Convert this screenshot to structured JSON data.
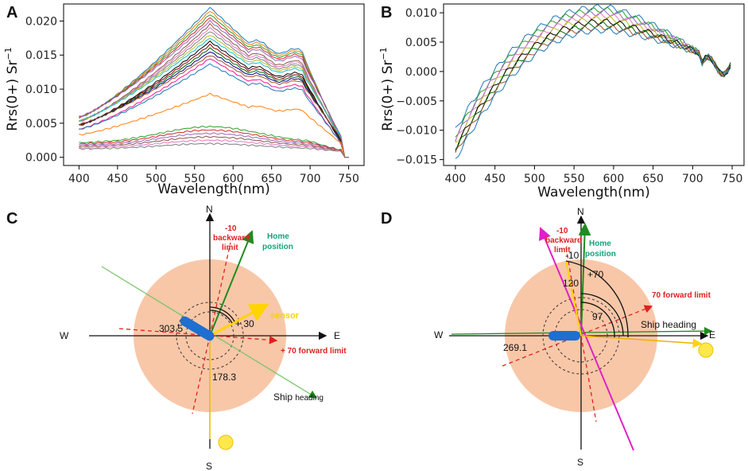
{
  "panels": [
    "A",
    "B",
    "C",
    "D"
  ],
  "colors": {
    "spectra": [
      "#1f77b4",
      "#ff7f0e",
      "#2ca02c",
      "#d62728",
      "#9467bd",
      "#8c564b",
      "#e377c2",
      "#7f7f7f",
      "#bcbd22",
      "#17becf",
      "#000000",
      "#8b0000",
      "#006400",
      "#00008b",
      "#a0522d",
      "#ff1493"
    ],
    "disk": "#f8c7a8",
    "green_line": "#1f8b1f",
    "red": "#e02020",
    "yellow": "#ffd400",
    "magenta": "#e020c8",
    "ship": "#1e6fd0"
  },
  "chart_data": [
    {
      "panel": "A",
      "type": "line",
      "xlabel": "Wavelength(nm)",
      "ylabel": "Rrs(0+) Sr",
      "ylabel_sup": "−1",
      "xlim": [
        380,
        770
      ],
      "ylim": [
        -0.0012,
        0.0225
      ],
      "xticks": [
        400,
        450,
        500,
        550,
        600,
        650,
        700,
        750
      ],
      "xtick_labels": [
        "400",
        "450",
        "500",
        "550",
        "600",
        "650",
        "700",
        "750"
      ],
      "yticks": [
        0.0,
        0.005,
        0.01,
        0.015,
        0.02
      ],
      "ytick_labels": [
        "0.000",
        "0.005",
        "0.010",
        "0.015",
        "0.020"
      ],
      "series_notes": "many in-situ spectra; high group peaks 0.013–0.022 near 570 nm, low group peaks about 0.002–0.0045",
      "series_peaks": [
        0.022,
        0.0215,
        0.021,
        0.0205,
        0.02,
        0.0195,
        0.019,
        0.0185,
        0.018,
        0.0175,
        0.017,
        0.0165,
        0.016,
        0.0155,
        0.015,
        0.0145,
        0.0137,
        0.0093,
        0.0045,
        0.004,
        0.0035,
        0.003,
        0.0025,
        0.002
      ]
    },
    {
      "panel": "B",
      "type": "line",
      "xlabel": "Wavelength(nm)",
      "ylabel": "Rrs(0+) Sr",
      "ylabel_sup": "−1",
      "xlim": [
        385,
        765
      ],
      "ylim": [
        -0.016,
        0.0115
      ],
      "xticks": [
        400,
        450,
        500,
        550,
        600,
        650,
        700,
        750
      ],
      "xtick_labels": [
        "400",
        "450",
        "500",
        "550",
        "600",
        "650",
        "700",
        "750"
      ],
      "yticks": [
        -0.015,
        -0.01,
        -0.005,
        0.0,
        0.005,
        0.01
      ],
      "ytick_labels": [
        "−0.015",
        "−0.010",
        "−0.005",
        "0.000",
        "0.005",
        "0.010"
      ],
      "series_start": [
        -0.01,
        -0.011,
        -0.0115,
        -0.012,
        -0.0125,
        -0.013,
        -0.0135,
        -0.014,
        -0.015
      ],
      "series_peak": [
        0.011,
        0.0105,
        0.01,
        0.0095,
        0.009,
        0.0085,
        0.008,
        0.0075,
        0.007
      ]
    }
  ],
  "diagrams": {
    "C": {
      "north": "N",
      "south": "S",
      "east": "E",
      "west": "W",
      "backward_limit": [
        "-10",
        "backward",
        "limit"
      ],
      "home_position": [
        "Home",
        "position"
      ],
      "sensor_label": "sensor",
      "angle_30": "+ 30",
      "angle_303": "303.5",
      "angle_178": "178.3",
      "forward_limit": "+ 70 forward limit",
      "ship_heading": "Ship",
      "ship_heading_small": "heading"
    },
    "D": {
      "north": "N",
      "south": "S",
      "east": "E",
      "west": "W",
      "backward_limit": [
        "-10",
        "backward",
        "limit"
      ],
      "home_position": [
        "Home",
        "position"
      ],
      "angle_minus10": "-10",
      "angle_70": "+70",
      "angle_120": "120",
      "angle_97": "97",
      "angle_269": "269.1",
      "forward_limit": "70 forward limit",
      "ship_heading": "Ship heading"
    }
  }
}
